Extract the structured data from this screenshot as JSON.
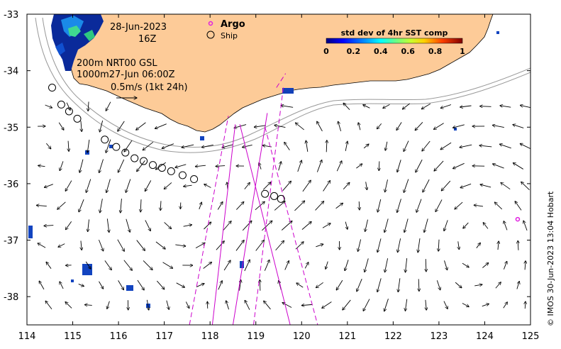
{
  "map": {
    "date": "28-Jun-2023",
    "hour": "16Z",
    "legend_argo": "Argo",
    "legend_ship": "Ship",
    "current_depths": "200m  NRT00 GSL",
    "current_time": "1000m27-Jun 06:00Z",
    "scale_label": "0.5m/s (1kt 24h)",
    "colorbar_title": "std dev of 4hr SST comp",
    "colorbar_ticks": [
      "0",
      "0.2",
      "0.4",
      "0.6",
      "0.8",
      "1"
    ],
    "credit": "© IMOS 30-Jun-2023 13:04 Hobart",
    "colors": {
      "land": "#fdcb98",
      "argo": "#e020e0",
      "track": "#cc00cc",
      "contour": "#999999"
    },
    "icons": [
      "argo-marker-icon",
      "ship-marker-icon"
    ]
  },
  "chart_data": {
    "type": "map",
    "xlim": [
      114,
      125
    ],
    "ylim": [
      -38.5,
      -33
    ],
    "x_ticks": [
      "114",
      "115",
      "116",
      "117",
      "118",
      "119",
      "120",
      "121",
      "122",
      "123",
      "124",
      "125"
    ],
    "y_ticks": [
      "-33",
      "-34",
      "-35",
      "-36",
      "-37",
      "-38"
    ],
    "ship_positions": [
      [
        114.55,
        -34.3
      ],
      [
        114.75,
        -34.6
      ],
      [
        114.92,
        -34.72
      ],
      [
        115.1,
        -34.85
      ],
      [
        115.7,
        -35.22
      ],
      [
        115.95,
        -35.35
      ],
      [
        116.15,
        -35.45
      ],
      [
        116.35,
        -35.55
      ],
      [
        116.55,
        -35.6
      ],
      [
        116.75,
        -35.67
      ],
      [
        116.95,
        -35.72
      ],
      [
        117.15,
        -35.78
      ],
      [
        117.4,
        -35.85
      ],
      [
        117.65,
        -35.92
      ],
      [
        119.2,
        -36.18
      ],
      [
        119.4,
        -36.22
      ],
      [
        119.55,
        -36.27
      ]
    ],
    "argo_floats": [
      [
        124.72,
        -36.63
      ]
    ],
    "swath_tracks": [
      {
        "style": "solid",
        "points": [
          [
            118.05,
            -38.5
          ],
          [
            118.55,
            -34.95
          ]
        ]
      },
      {
        "style": "solid",
        "points": [
          [
            118.65,
            -34.95
          ],
          [
            119.75,
            -38.5
          ]
        ]
      },
      {
        "style": "solid",
        "points": [
          [
            118.5,
            -38.5
          ],
          [
            119.25,
            -34.75
          ]
        ]
      },
      {
        "style": "dashed",
        "points": [
          [
            117.55,
            -38.5
          ],
          [
            118.4,
            -34.8
          ]
        ]
      },
      {
        "style": "dashed",
        "points": [
          [
            118.95,
            -38.5
          ],
          [
            119.6,
            -34.3
          ]
        ]
      },
      {
        "style": "dashed",
        "points": [
          [
            119.2,
            -35.0
          ],
          [
            120.35,
            -38.5
          ]
        ]
      },
      {
        "style": "dashed",
        "points": [
          [
            119.45,
            -34.3
          ],
          [
            119.65,
            -34.05
          ]
        ]
      }
    ]
  }
}
